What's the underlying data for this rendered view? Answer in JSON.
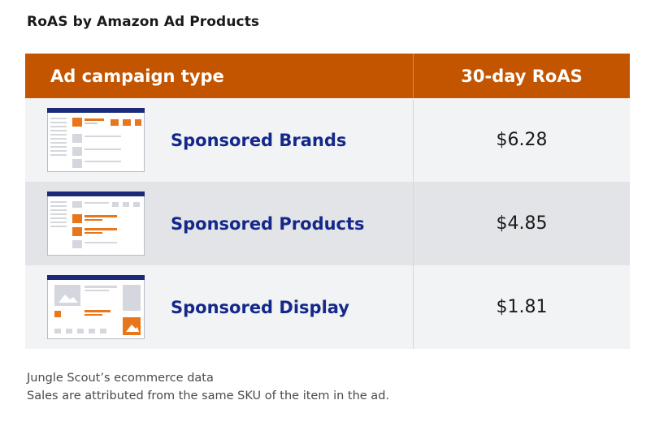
{
  "title": "RoAS by Amazon Ad Products",
  "colors": {
    "header_bg": "#c45500",
    "product_name": "#14288a",
    "thumbnail_accent": "#e8761b",
    "thumbnail_bar": "#1b2a78"
  },
  "chart_data": {
    "type": "table",
    "columns": [
      "Ad campaign type",
      "30-day RoAS"
    ],
    "rows": [
      {
        "type": "Sponsored Brands",
        "roas": "$6.28",
        "value": 6.28,
        "icon": "sponsored-brands-thumbnail-icon"
      },
      {
        "type": "Sponsored Products",
        "roas": "$4.85",
        "value": 4.85,
        "icon": "sponsored-products-thumbnail-icon"
      },
      {
        "type": "Sponsored Display",
        "roas": "$1.81",
        "value": 1.81,
        "icon": "sponsored-display-thumbnail-icon"
      }
    ]
  },
  "footer": {
    "line1": "Jungle Scout’s ecommerce data",
    "line2": "Sales are attributed from the same SKU of the item in the ad."
  }
}
